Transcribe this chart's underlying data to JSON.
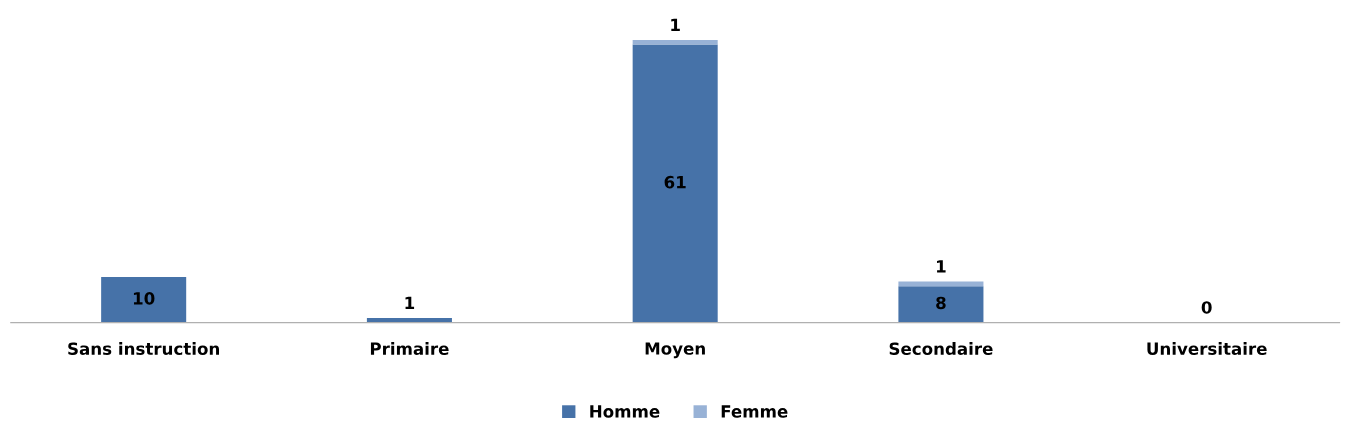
{
  "chart_data": {
    "type": "bar",
    "stacked": true,
    "categories": [
      "Sans instruction",
      "Primaire",
      "Moyen",
      "Secondaire",
      "Universitaire"
    ],
    "series": [
      {
        "name": "Homme",
        "color": "#4672a8",
        "values": [
          10,
          1,
          61,
          8,
          0
        ],
        "value_labels": [
          "10",
          "1",
          "61",
          "8",
          "0"
        ]
      },
      {
        "name": "Femme",
        "color": "#98b2d6",
        "values": [
          0,
          0,
          1,
          1,
          0
        ],
        "value_labels": [
          null,
          null,
          "1",
          "1",
          null
        ]
      }
    ],
    "tick_labels": "x",
    "grid": false,
    "legend": "bottom"
  }
}
